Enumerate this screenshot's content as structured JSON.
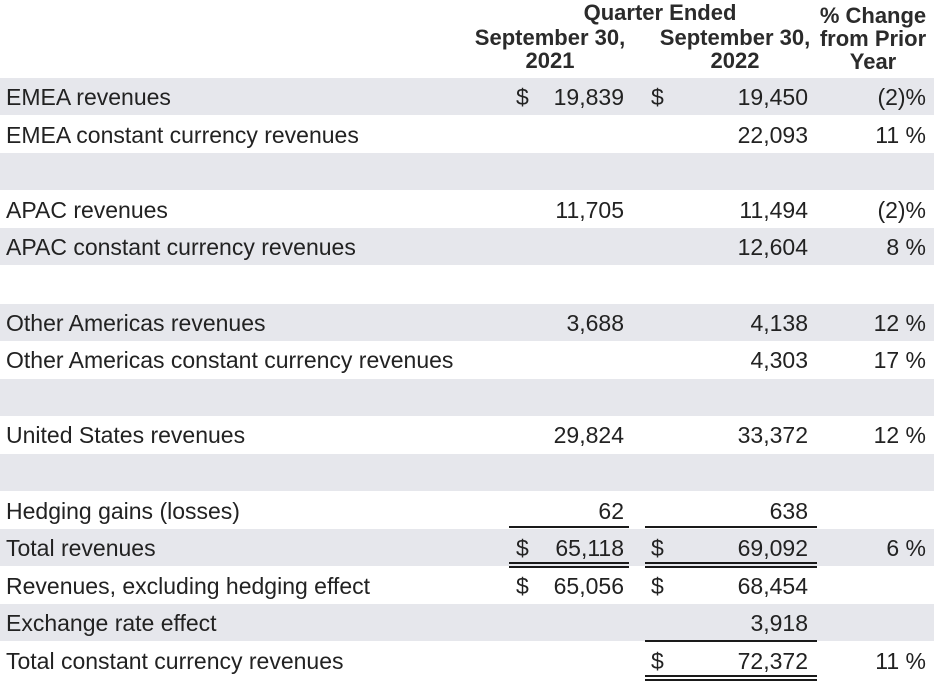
{
  "header": {
    "group_title": "Quarter Ended",
    "col1_line1": "September 30,",
    "col1_line2": "2021",
    "col2_line1": "September 30,",
    "col2_line2": "2022",
    "col3_line1": "% Change",
    "col3_line2": "from Prior",
    "col3_line3": "Year"
  },
  "rows": [
    {
      "label": "EMEA revenues",
      "d1": "$",
      "v1": "19,839",
      "d2": "$",
      "v2": "19,450",
      "pct": "(2)%"
    },
    {
      "label": "EMEA constant currency revenues",
      "d1": "",
      "v1": "",
      "d2": "",
      "v2": "22,093",
      "pct": "11 %"
    },
    {
      "label": "",
      "d1": "",
      "v1": "",
      "d2": "",
      "v2": "",
      "pct": ""
    },
    {
      "label": "APAC revenues",
      "d1": "",
      "v1": "11,705",
      "d2": "",
      "v2": "11,494",
      "pct": "(2)%"
    },
    {
      "label": "APAC constant currency revenues",
      "d1": "",
      "v1": "",
      "d2": "",
      "v2": "12,604",
      "pct": "8 %"
    },
    {
      "label": "",
      "d1": "",
      "v1": "",
      "d2": "",
      "v2": "",
      "pct": ""
    },
    {
      "label": "Other Americas revenues",
      "d1": "",
      "v1": "3,688",
      "d2": "",
      "v2": "4,138",
      "pct": "12 %"
    },
    {
      "label": "Other Americas constant currency revenues",
      "d1": "",
      "v1": "",
      "d2": "",
      "v2": "4,303",
      "pct": "17 %"
    },
    {
      "label": "",
      "d1": "",
      "v1": "",
      "d2": "",
      "v2": "",
      "pct": ""
    },
    {
      "label": "United States revenues",
      "d1": "",
      "v1": "29,824",
      "d2": "",
      "v2": "33,372",
      "pct": "12 %"
    },
    {
      "label": "",
      "d1": "",
      "v1": "",
      "d2": "",
      "v2": "",
      "pct": ""
    },
    {
      "label": "Hedging gains (losses)",
      "d1": "",
      "v1": "62",
      "d2": "",
      "v2": "638",
      "pct": ""
    },
    {
      "label": "Total revenues",
      "d1": "$",
      "v1": "65,118",
      "d2": "$",
      "v2": "69,092",
      "pct": "6 %"
    },
    {
      "label": "Revenues, excluding hedging effect",
      "d1": "$",
      "v1": "65,056",
      "d2": "$",
      "v2": "68,454",
      "pct": ""
    },
    {
      "label": "Exchange rate effect",
      "d1": "",
      "v1": "",
      "d2": "",
      "v2": "3,918",
      "pct": ""
    },
    {
      "label": "Total constant currency revenues",
      "d1": "",
      "v1": "",
      "d2": "$",
      "v2": "72,372",
      "pct": "11 %"
    }
  ]
}
